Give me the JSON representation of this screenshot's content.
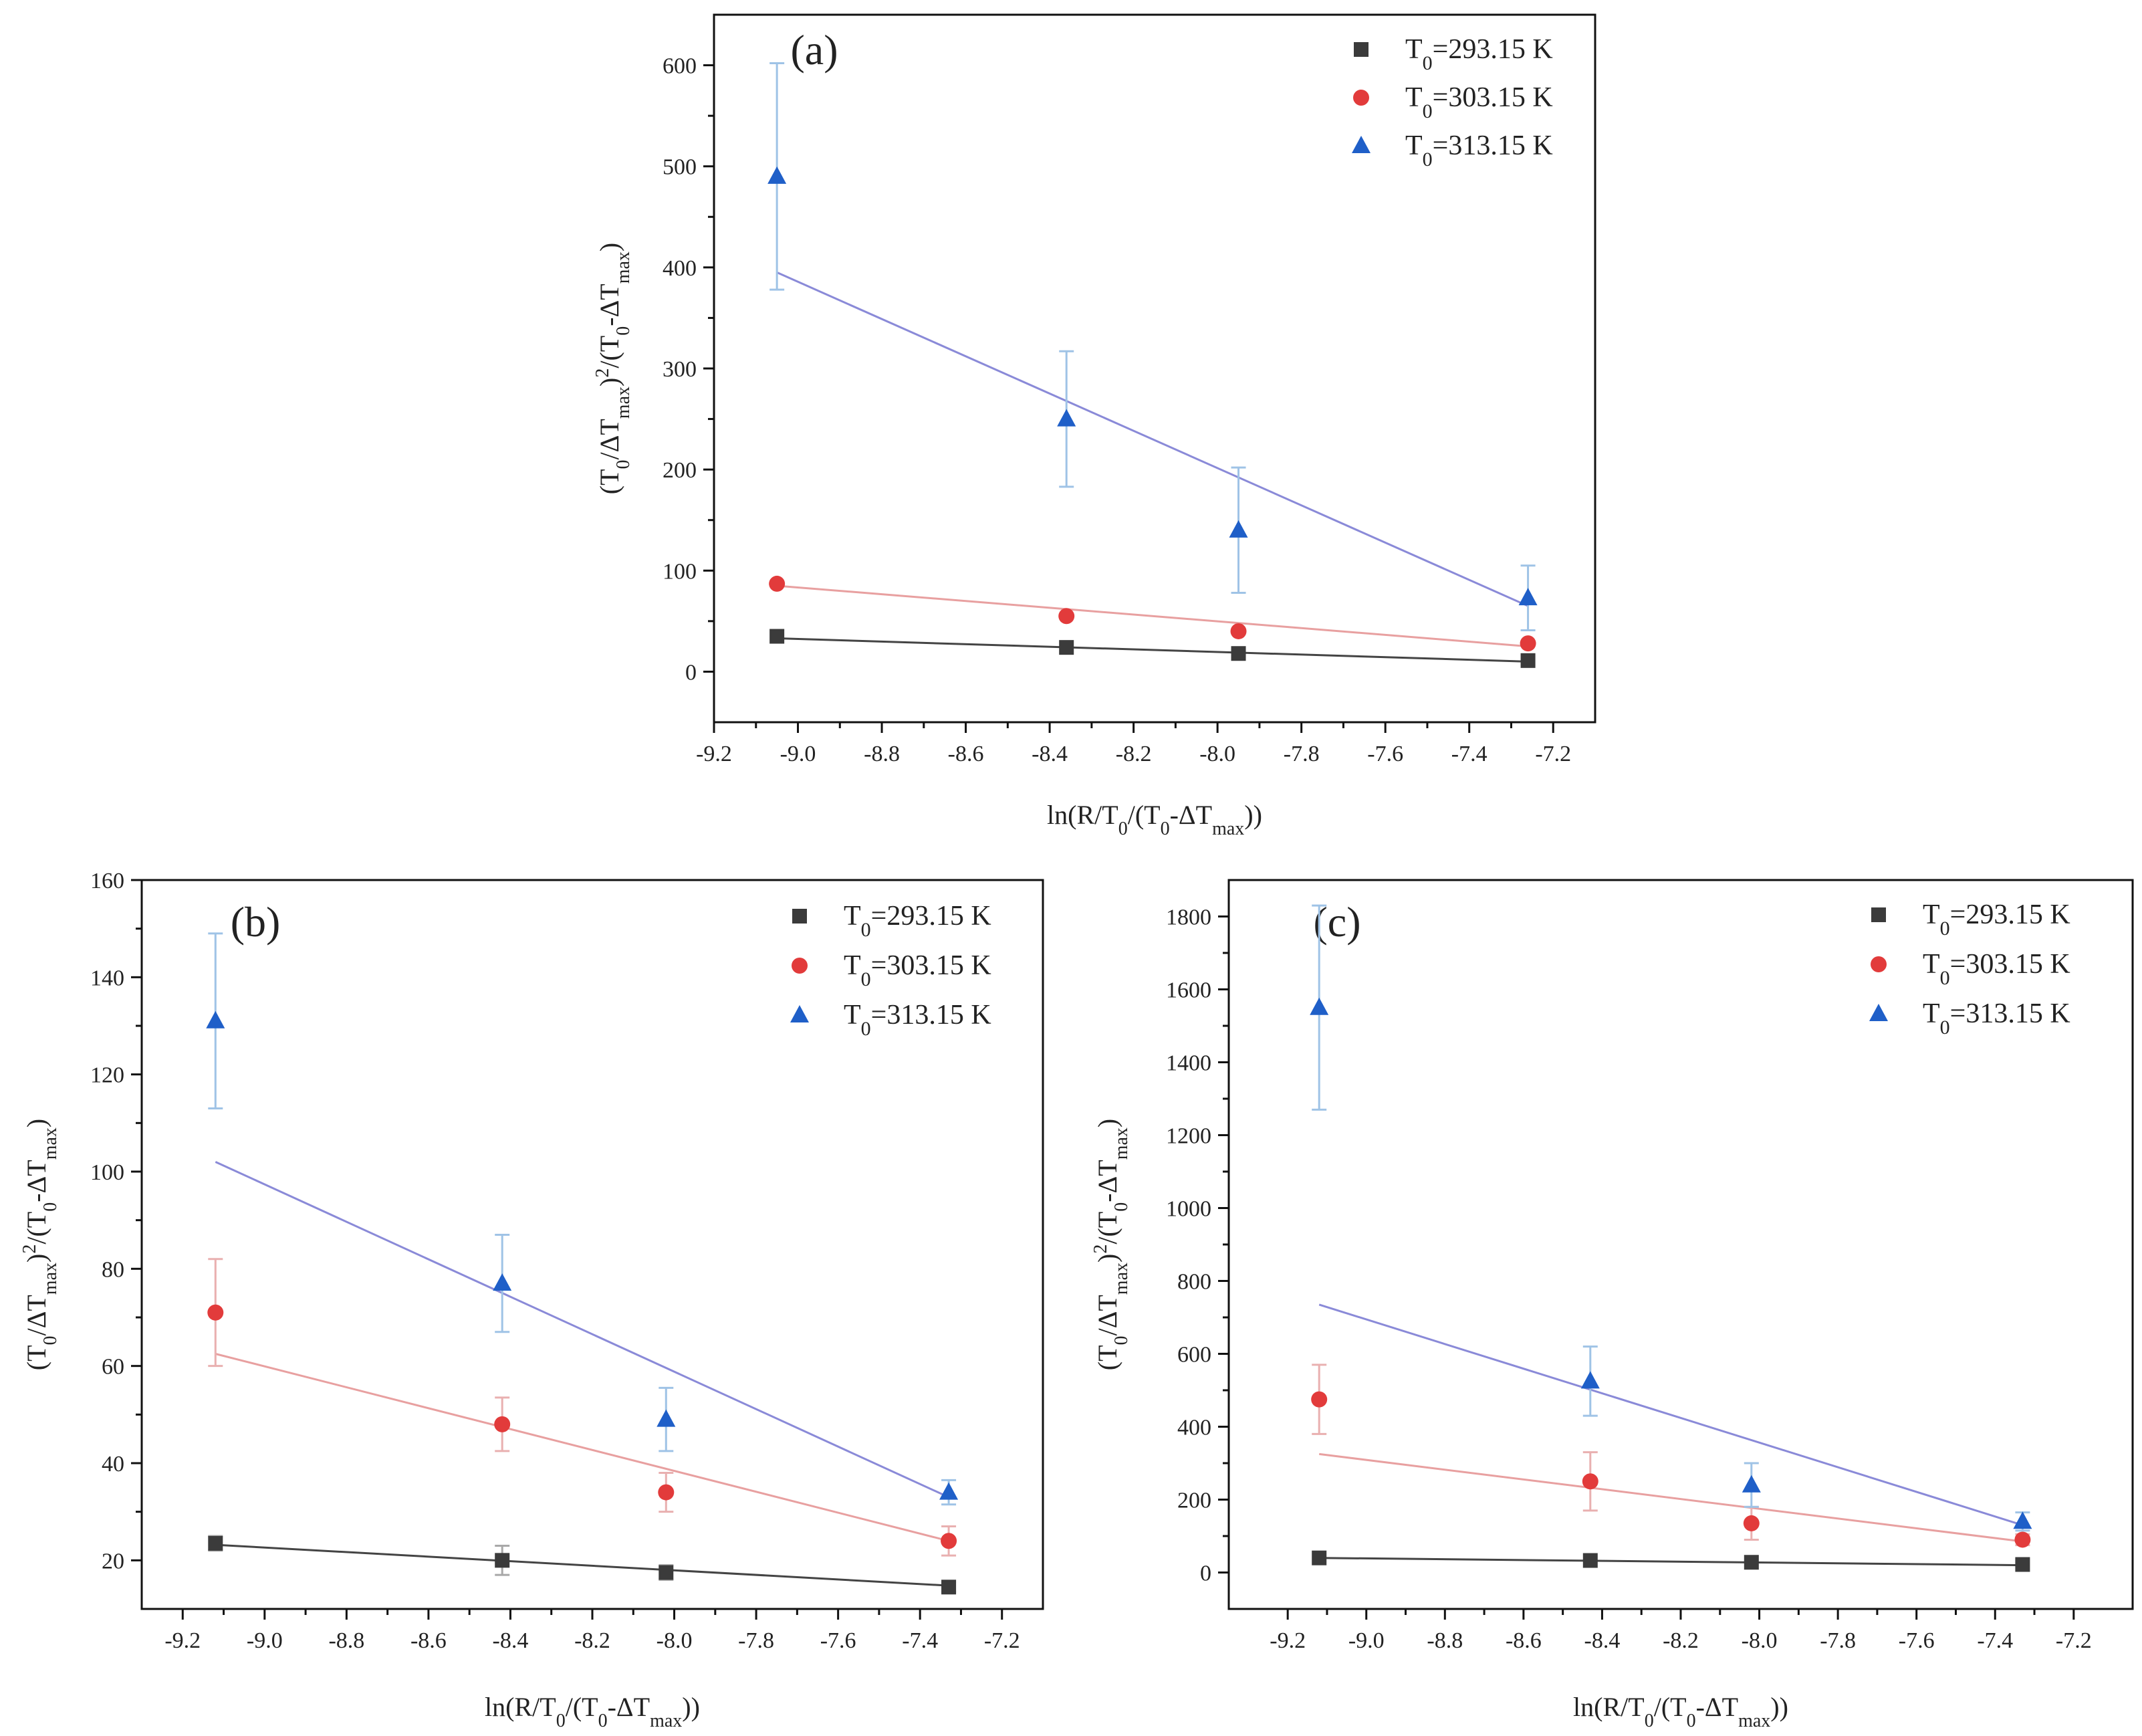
{
  "colors": {
    "s293": "#3b3b3b",
    "s303": "#e23b3b",
    "s313": "#1f5fc8",
    "fit293": "#444444",
    "fit303": "#e8a0a0",
    "fit313": "#8a8ad8",
    "err293": "#a8a8a8",
    "err303": "#e9b0b0",
    "err313": "#9fc3e6"
  },
  "chart_data": [
    {
      "type": "scatter",
      "panel_label": "(a)",
      "xlabel": {
        "base": "ln(R/T",
        "sub1": "0",
        "mid": "/(T",
        "sub2": "0",
        "mid2": "-ΔT",
        "sub3": "max",
        "end": "))"
      },
      "ylabel": {
        "p1": "(T",
        "s1": "0",
        "p2": "/ΔT",
        "s2": "max",
        "p3": ")",
        "sup": "2",
        "p4": "/(T",
        "s3": "0",
        "p5": "-ΔT",
        "s4": "max",
        "p6": ")"
      },
      "xlim": [
        -9.2,
        -7.1
      ],
      "ylim": [
        -50,
        650
      ],
      "xticks": [
        -9.2,
        -9.0,
        -8.8,
        -8.6,
        -8.4,
        -8.2,
        -8.0,
        -7.8,
        -7.6,
        -7.4,
        -7.2
      ],
      "xtick_labels": [
        "-9.2",
        "-9.0",
        "-8.8",
        "-8.6",
        "-8.4",
        "-8.2",
        "-8.0",
        "-7.8",
        "-7.6",
        "-7.4",
        "-7.2"
      ],
      "yticks": [
        0,
        100,
        200,
        300,
        400,
        500,
        600
      ],
      "ytick_labels": [
        "0",
        "100",
        "200",
        "300",
        "400",
        "500",
        "600"
      ],
      "legend_position": "top-right",
      "series": [
        {
          "name": {
            "pre": "T",
            "sub": "0",
            "post": "=293.15 K"
          },
          "marker": "square",
          "color_key": "s293",
          "fit_key": "fit293",
          "err_key": "err293",
          "x": [
            -9.05,
            -8.36,
            -7.95,
            -7.26
          ],
          "y": [
            35,
            24,
            18,
            11
          ],
          "err": [
            0,
            0,
            0,
            0
          ],
          "fit": [
            [
              -9.05,
              33
            ],
            [
              -7.26,
              10
            ]
          ]
        },
        {
          "name": {
            "pre": "T",
            "sub": "0",
            "post": "=303.15 K"
          },
          "marker": "circle",
          "color_key": "s303",
          "fit_key": "fit303",
          "err_key": "err303",
          "x": [
            -9.05,
            -8.36,
            -7.95,
            -7.26
          ],
          "y": [
            87,
            55,
            40,
            28
          ],
          "err": [
            0,
            0,
            0,
            0
          ],
          "fit": [
            [
              -9.05,
              85
            ],
            [
              -7.26,
              25
            ]
          ]
        },
        {
          "name": {
            "pre": "T",
            "sub": "0",
            "post": "=313.15 K"
          },
          "marker": "triangle",
          "color_key": "s313",
          "fit_key": "fit313",
          "err_key": "err313",
          "x": [
            -9.05,
            -8.36,
            -7.95,
            -7.26
          ],
          "y": [
            490,
            250,
            140,
            73
          ],
          "err": [
            112,
            67,
            62,
            32
          ],
          "fit": [
            [
              -9.05,
              395
            ],
            [
              -7.26,
              65
            ]
          ]
        }
      ]
    },
    {
      "type": "scatter",
      "panel_label": "(b)",
      "xlabel": {
        "base": "ln(R/T",
        "sub1": "0",
        "mid": "/(T",
        "sub2": "0",
        "mid2": "-ΔT",
        "sub3": "max",
        "end": "))"
      },
      "ylabel": {
        "p1": "(T",
        "s1": "0",
        "p2": "/ΔT",
        "s2": "max",
        "p3": ")",
        "sup": "2",
        "p4": "/(T",
        "s3": "0",
        "p5": "-ΔT",
        "s4": "max",
        "p6": ")"
      },
      "xlim": [
        -9.3,
        -7.1
      ],
      "ylim": [
        10,
        160
      ],
      "xticks": [
        -9.2,
        -9.0,
        -8.8,
        -8.6,
        -8.4,
        -8.2,
        -8.0,
        -7.8,
        -7.6,
        -7.4,
        -7.2
      ],
      "xtick_labels": [
        "-9.2",
        "-9.0",
        "-8.8",
        "-8.6",
        "-8.4",
        "-8.2",
        "-8.0",
        "-7.8",
        "-7.6",
        "-7.4",
        "-7.2"
      ],
      "yticks": [
        20,
        40,
        60,
        80,
        100,
        120,
        140,
        160
      ],
      "ytick_labels": [
        "20",
        "40",
        "60",
        "80",
        "100",
        "120",
        "140",
        "160"
      ],
      "legend_position": "top-right",
      "series": [
        {
          "name": {
            "pre": "T",
            "sub": "0",
            "post": "=293.15 K"
          },
          "marker": "square",
          "color_key": "s293",
          "fit_key": "fit293",
          "err_key": "err293",
          "x": [
            -9.12,
            -8.42,
            -8.02,
            -7.33
          ],
          "y": [
            23.5,
            20,
            17.5,
            14.5
          ],
          "err": [
            1.5,
            3,
            1.5,
            1
          ],
          "fit": [
            [
              -9.12,
              23.2
            ],
            [
              -7.33,
              14.8
            ]
          ]
        },
        {
          "name": {
            "pre": "T",
            "sub": "0",
            "post": "=303.15 K"
          },
          "marker": "circle",
          "color_key": "s303",
          "fit_key": "fit303",
          "err_key": "err303",
          "x": [
            -9.12,
            -8.42,
            -8.02,
            -7.33
          ],
          "y": [
            71,
            48,
            34,
            24
          ],
          "err": [
            11,
            5.5,
            4,
            3
          ],
          "fit": [
            [
              -9.12,
              62.5
            ],
            [
              -7.33,
              24
            ]
          ]
        },
        {
          "name": {
            "pre": "T",
            "sub": "0",
            "post": "=313.15 K"
          },
          "marker": "triangle",
          "color_key": "s313",
          "fit_key": "fit313",
          "err_key": "err313",
          "x": [
            -9.12,
            -8.42,
            -8.02,
            -7.33
          ],
          "y": [
            131,
            77,
            49,
            34
          ],
          "err": [
            18,
            10,
            6.5,
            2.5
          ],
          "fit": [
            [
              -9.12,
              102
            ],
            [
              -7.33,
              33
            ]
          ]
        }
      ]
    },
    {
      "type": "scatter",
      "panel_label": "(c)",
      "xlabel": {
        "base": "ln(R/T",
        "sub1": "0",
        "mid": "/(T",
        "sub2": "0",
        "mid2": "-ΔT",
        "sub3": "max",
        "end": "))"
      },
      "ylabel": {
        "p1": "(T",
        "s1": "0",
        "p2": "/ΔT",
        "s2": "max",
        "p3": ")",
        "sup": "2",
        "p4": "/(T",
        "s3": "0",
        "p5": "-ΔT",
        "s4": "max",
        "p6": ")"
      },
      "xlim": [
        -9.35,
        -7.05
      ],
      "ylim": [
        -100,
        1900
      ],
      "xticks": [
        -9.2,
        -9.0,
        -8.8,
        -8.6,
        -8.4,
        -8.2,
        -8.0,
        -7.8,
        -7.6,
        -7.4,
        -7.2
      ],
      "xtick_labels": [
        "-9.2",
        "-9.0",
        "-8.8",
        "-8.6",
        "-8.4",
        "-8.2",
        "-8.0",
        "-7.8",
        "-7.6",
        "-7.4",
        "-7.2"
      ],
      "yticks": [
        0,
        200,
        400,
        600,
        800,
        1000,
        1200,
        1400,
        1600,
        1800
      ],
      "ytick_labels": [
        "0",
        "200",
        "400",
        "600",
        "800",
        "1000",
        "1200",
        "1400",
        "1600",
        "1800"
      ],
      "legend_position": "top-right",
      "series": [
        {
          "name": {
            "pre": "T",
            "sub": "0",
            "post": "=293.15 K"
          },
          "marker": "square",
          "color_key": "s293",
          "fit_key": "fit293",
          "err_key": "err293",
          "x": [
            -9.12,
            -8.43,
            -8.02,
            -7.33
          ],
          "y": [
            40,
            33,
            28,
            22
          ],
          "err": [
            0,
            0,
            0,
            0
          ],
          "fit": [
            [
              -9.12,
              40
            ],
            [
              -7.33,
              20
            ]
          ]
        },
        {
          "name": {
            "pre": "T",
            "sub": "0",
            "post": "=303.15 K"
          },
          "marker": "circle",
          "color_key": "s303",
          "fit_key": "fit303",
          "err_key": "err303",
          "x": [
            -9.12,
            -8.43,
            -8.02,
            -7.33
          ],
          "y": [
            475,
            250,
            135,
            90
          ],
          "err": [
            95,
            80,
            45,
            15
          ],
          "fit": [
            [
              -9.12,
              325
            ],
            [
              -7.33,
              85
            ]
          ]
        },
        {
          "name": {
            "pre": "T",
            "sub": "0",
            "post": "=313.15 K"
          },
          "marker": "triangle",
          "color_key": "s313",
          "fit_key": "fit313",
          "err_key": "err313",
          "x": [
            -9.12,
            -8.43,
            -8.02,
            -7.33
          ],
          "y": [
            1550,
            525,
            240,
            140
          ],
          "err": [
            280,
            95,
            60,
            25
          ],
          "fit": [
            [
              -9.12,
              735
            ],
            [
              -7.33,
              130
            ]
          ]
        }
      ]
    }
  ]
}
